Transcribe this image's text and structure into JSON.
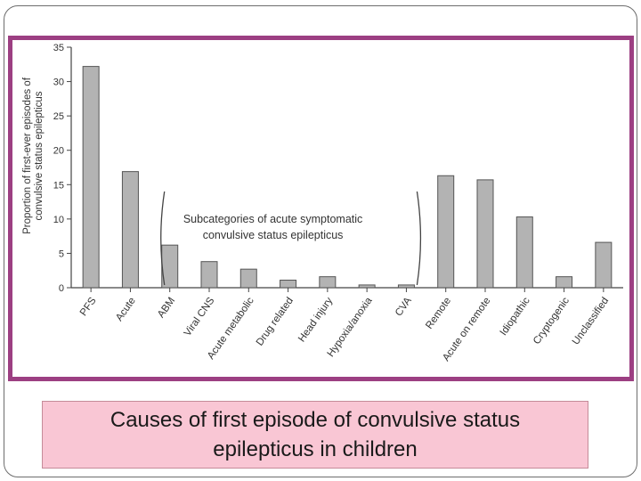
{
  "caption": "Causes of first episode of convulsive status epilepticus in children",
  "chart_data": {
    "type": "bar",
    "title": "",
    "ylabel": "Proportion of first-ever episodes of convulsive status epilepticus",
    "xlabel": "",
    "ylim": [
      0,
      35
    ],
    "yticks": [
      0,
      5,
      10,
      15,
      20,
      25,
      30,
      35
    ],
    "categories": [
      "PFS",
      "Acute",
      "ABM",
      "Viral CNS",
      "Acute metabolic",
      "Drug related",
      "Head injury",
      "Hypoxia/anoxia",
      "CVA",
      "Remote",
      "Acute on remote",
      "Idiopathic",
      "Cryptogenic",
      "Unclassified"
    ],
    "values": [
      32.2,
      16.9,
      6.2,
      3.8,
      2.7,
      1.1,
      1.6,
      0.4,
      0.4,
      16.3,
      15.7,
      10.3,
      1.6,
      6.6
    ],
    "annotation": {
      "text_lines": [
        "Subcategories of acute symptomatic",
        "convulsive status epilepticus"
      ],
      "from_category": 2,
      "to_category": 8
    },
    "bar_color": "#b3b3b3",
    "bar_edge_color": "#555555",
    "grid": false
  }
}
